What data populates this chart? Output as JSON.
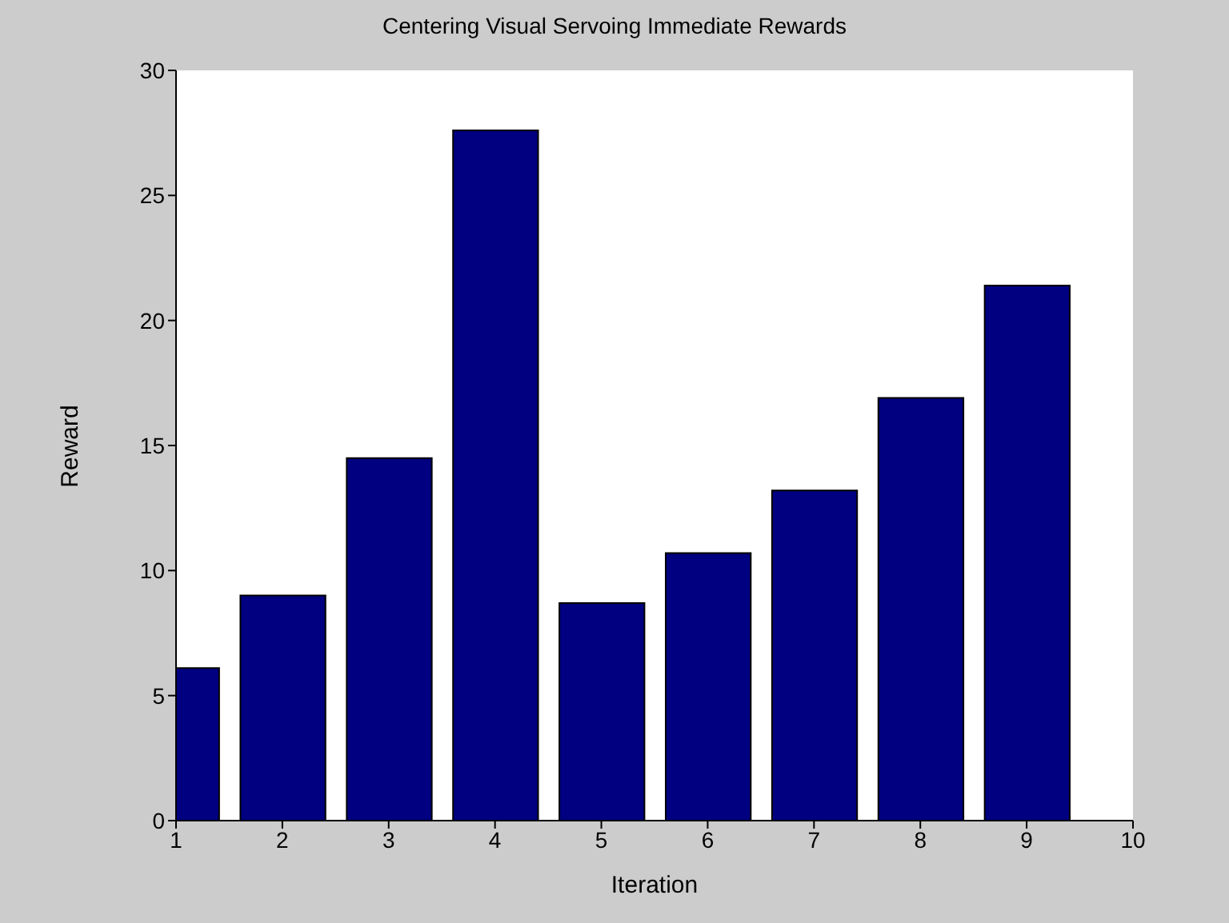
{
  "chart_data": {
    "type": "bar",
    "title": "Centering Visual Servoing Immediate Rewards",
    "xlabel": "Iteration",
    "ylabel": "Reward",
    "x": [
      1,
      2,
      3,
      4,
      5,
      6,
      7,
      8,
      9
    ],
    "values": [
      6.1,
      9.0,
      14.5,
      27.6,
      8.7,
      10.7,
      13.2,
      16.9,
      21.4
    ],
    "color": "#000080",
    "xlim": [
      1,
      10
    ],
    "xticks": [
      1,
      2,
      3,
      4,
      5,
      6,
      7,
      8,
      9,
      10
    ],
    "ylim": [
      0,
      30
    ],
    "yticks": [
      0,
      5,
      10,
      15,
      20,
      25,
      30
    ],
    "grid": false,
    "legend": false
  }
}
